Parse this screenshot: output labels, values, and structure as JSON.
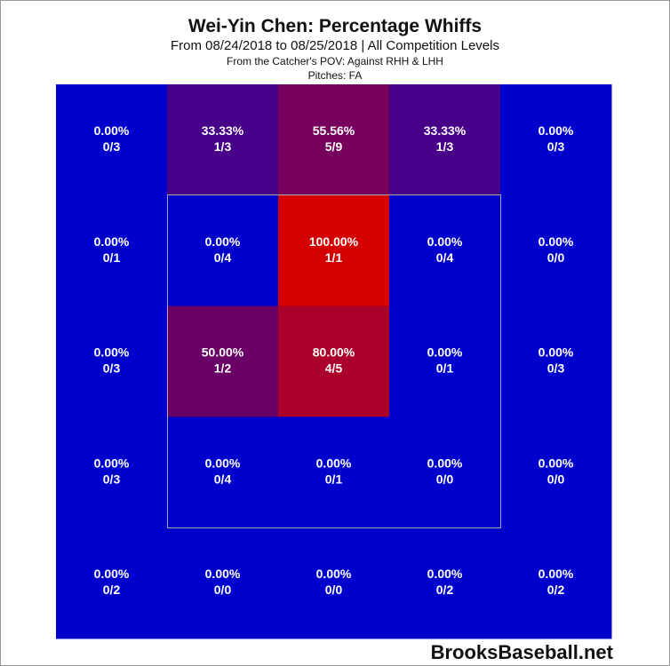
{
  "chart_data": {
    "type": "heatmap",
    "title": "Wei-Yin Chen: Percentage Whiffs",
    "subtitle": "From 08/24/2018 to 08/25/2018 | All Competition Levels",
    "notes": [
      "From the Catcher's POV:  Against RHH & LHH",
      "Pitches:  FA"
    ],
    "source": "BrooksBaseball.net",
    "color_low": "#0000cc",
    "color_high": "#d40000",
    "zlim": [
      0,
      100
    ],
    "values": [
      [
        0,
        33.33,
        55.56,
        33.33,
        0
      ],
      [
        0,
        0,
        100,
        0,
        0
      ],
      [
        0,
        50,
        80,
        0,
        0
      ],
      [
        0,
        0,
        0,
        0,
        0
      ],
      [
        0,
        0,
        0,
        0,
        0
      ]
    ],
    "value_labels": [
      [
        "0.00%",
        "33.33%",
        "55.56%",
        "33.33%",
        "0.00%"
      ],
      [
        "0.00%",
        "0.00%",
        "100.00%",
        "0.00%",
        "0.00%"
      ],
      [
        "0.00%",
        "50.00%",
        "80.00%",
        "0.00%",
        "0.00%"
      ],
      [
        "0.00%",
        "0.00%",
        "0.00%",
        "0.00%",
        "0.00%"
      ],
      [
        "0.00%",
        "0.00%",
        "0.00%",
        "0.00%",
        "0.00%"
      ]
    ],
    "counts": [
      [
        "0/3",
        "1/3",
        "5/9",
        "1/3",
        "0/3"
      ],
      [
        "0/1",
        "0/4",
        "1/1",
        "0/4",
        "0/0"
      ],
      [
        "0/3",
        "1/2",
        "4/5",
        "0/1",
        "0/3"
      ],
      [
        "0/3",
        "0/4",
        "0/1",
        "0/0",
        "0/0"
      ],
      [
        "0/2",
        "0/0",
        "0/0",
        "0/2",
        "0/2"
      ]
    ]
  }
}
